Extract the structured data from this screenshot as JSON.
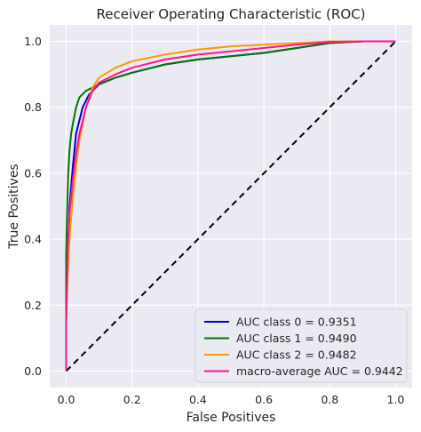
{
  "chart_data": {
    "type": "line",
    "title": "Receiver Operating Characteristic (ROC)",
    "xlabel": "False Positives",
    "ylabel": "True Positives",
    "xlim": [
      -0.05,
      1.05
    ],
    "ylim": [
      -0.05,
      1.05
    ],
    "x_ticks": [
      0.0,
      0.2,
      0.4,
      0.6,
      0.8,
      1.0
    ],
    "y_ticks": [
      0.0,
      0.2,
      0.4,
      0.6,
      0.8,
      1.0
    ],
    "x_tick_labels": [
      "0.0",
      "0.2",
      "0.4",
      "0.6",
      "0.8",
      "1.0"
    ],
    "y_tick_labels": [
      "0.0",
      "0.2",
      "0.4",
      "0.6",
      "0.8",
      "1.0"
    ],
    "grid": true,
    "legend_position": "lower-right",
    "background_color": "#eaeaf2",
    "series": [
      {
        "name": "AUC class 0 = 0.9351",
        "color": "#0000cc",
        "x": [
          0.0,
          0.0,
          0.005,
          0.01,
          0.02,
          0.03,
          0.05,
          0.07,
          0.1,
          0.15,
          0.2,
          0.3,
          0.4,
          0.5,
          0.6,
          0.7,
          0.8,
          0.9,
          1.0
        ],
        "y": [
          0.0,
          0.15,
          0.35,
          0.5,
          0.62,
          0.72,
          0.8,
          0.84,
          0.87,
          0.89,
          0.905,
          0.93,
          0.945,
          0.955,
          0.965,
          0.98,
          0.995,
          1.0,
          1.0
        ]
      },
      {
        "name": "AUC class 1 = 0.9490",
        "color": "#007700",
        "x": [
          0.0,
          0.0,
          0.003,
          0.006,
          0.01,
          0.015,
          0.02,
          0.03,
          0.04,
          0.06,
          0.08,
          0.1,
          0.15,
          0.2,
          0.3,
          0.4,
          0.5,
          0.6,
          0.7,
          0.8,
          0.9,
          1.0
        ],
        "y": [
          0.0,
          0.35,
          0.5,
          0.6,
          0.67,
          0.72,
          0.75,
          0.8,
          0.83,
          0.85,
          0.86,
          0.87,
          0.89,
          0.905,
          0.93,
          0.945,
          0.955,
          0.965,
          0.98,
          0.995,
          1.0,
          1.0
        ]
      },
      {
        "name": "AUC class 2 = 0.9482",
        "color": "#ff9900",
        "x": [
          0.0,
          0.0,
          0.005,
          0.01,
          0.02,
          0.03,
          0.04,
          0.06,
          0.08,
          0.1,
          0.15,
          0.2,
          0.3,
          0.4,
          0.5,
          0.6,
          0.7,
          0.8,
          0.9,
          1.0
        ],
        "y": [
          0.0,
          0.15,
          0.3,
          0.4,
          0.53,
          0.62,
          0.7,
          0.8,
          0.86,
          0.89,
          0.92,
          0.94,
          0.96,
          0.975,
          0.985,
          0.99,
          0.995,
          1.0,
          1.0,
          1.0
        ]
      },
      {
        "name": "macro-average AUC = 0.9442",
        "color": "#ff1493",
        "x": [
          0.0,
          0.0,
          0.005,
          0.01,
          0.02,
          0.03,
          0.04,
          0.06,
          0.08,
          0.1,
          0.15,
          0.2,
          0.3,
          0.4,
          0.5,
          0.6,
          0.7,
          0.8,
          0.9,
          1.0
        ],
        "y": [
          0.0,
          0.15,
          0.38,
          0.48,
          0.58,
          0.66,
          0.72,
          0.8,
          0.85,
          0.875,
          0.9,
          0.92,
          0.945,
          0.96,
          0.97,
          0.98,
          0.99,
          0.998,
          1.0,
          1.0
        ]
      },
      {
        "name": "",
        "color": "#000000",
        "style": "dashed",
        "x": [
          0.0,
          1.0
        ],
        "y": [
          0.0,
          1.0
        ]
      }
    ]
  }
}
